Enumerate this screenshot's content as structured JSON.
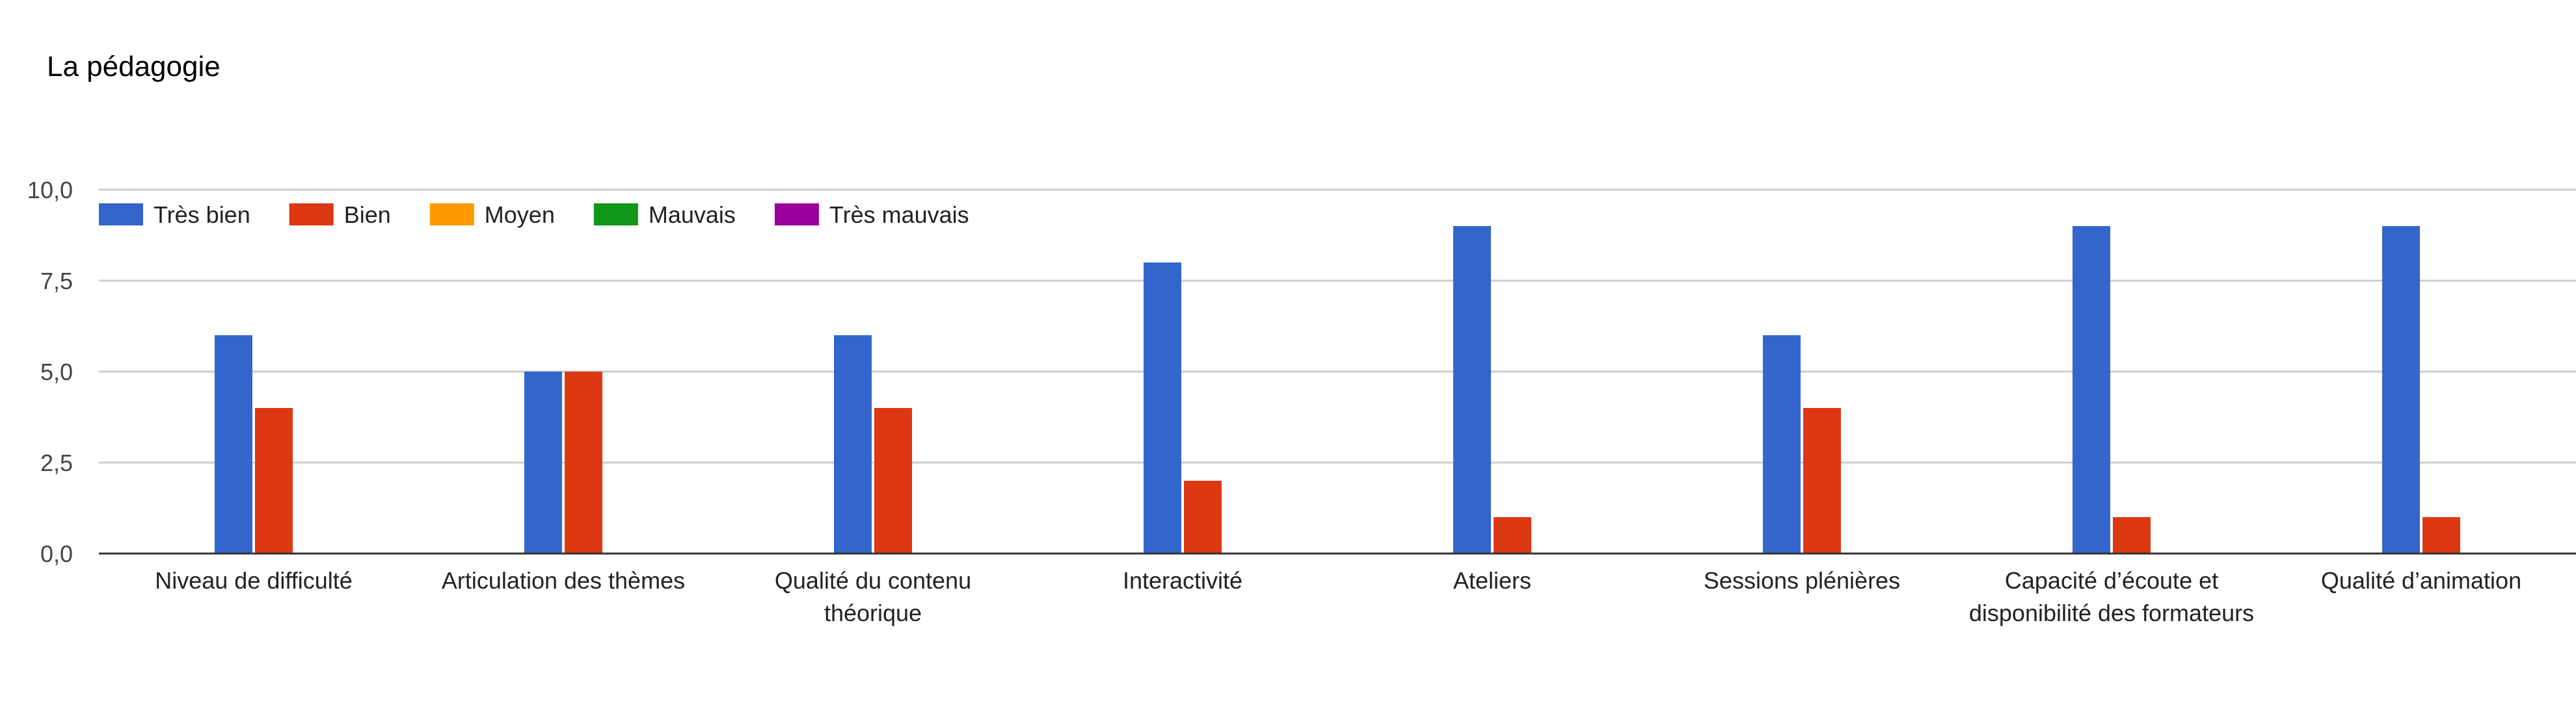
{
  "chart_data": {
    "type": "bar",
    "title": "La pédagogie",
    "xlabel": "",
    "ylabel": "",
    "ylim": [
      0,
      10
    ],
    "y_ticks": [
      "0,0",
      "2,5",
      "5,0",
      "7,5",
      "10,0"
    ],
    "y_tick_values": [
      0,
      2.5,
      5,
      7.5,
      10
    ],
    "grid": true,
    "legend_position": "top-left",
    "categories": [
      [
        "Niveau de difficulté"
      ],
      [
        "Articulation des thèmes"
      ],
      [
        "Qualité du contenu",
        "théorique"
      ],
      [
        "Interactivité"
      ],
      [
        "Ateliers"
      ],
      [
        "Sessions plénières"
      ],
      [
        "Capacité d’écoute et",
        "disponibilité des formateurs"
      ],
      [
        "Qualité d’animation"
      ]
    ],
    "series": [
      {
        "name": "Très bien",
        "color": "#3366cc",
        "values": [
          6,
          5,
          6,
          8,
          9,
          6,
          9,
          9
        ]
      },
      {
        "name": "Bien",
        "color": "#dc3912",
        "values": [
          4,
          5,
          4,
          2,
          1,
          4,
          1,
          1
        ]
      },
      {
        "name": "Moyen",
        "color": "#ff9900",
        "values": [
          0,
          0,
          0,
          0,
          0,
          0,
          0,
          0
        ]
      },
      {
        "name": "Mauvais",
        "color": "#109618",
        "values": [
          0,
          0,
          0,
          0,
          0,
          0,
          0,
          0
        ]
      },
      {
        "name": "Très mauvais",
        "color": "#990099",
        "values": [
          0,
          0,
          0,
          0,
          0,
          0,
          0,
          0
        ]
      }
    ]
  }
}
